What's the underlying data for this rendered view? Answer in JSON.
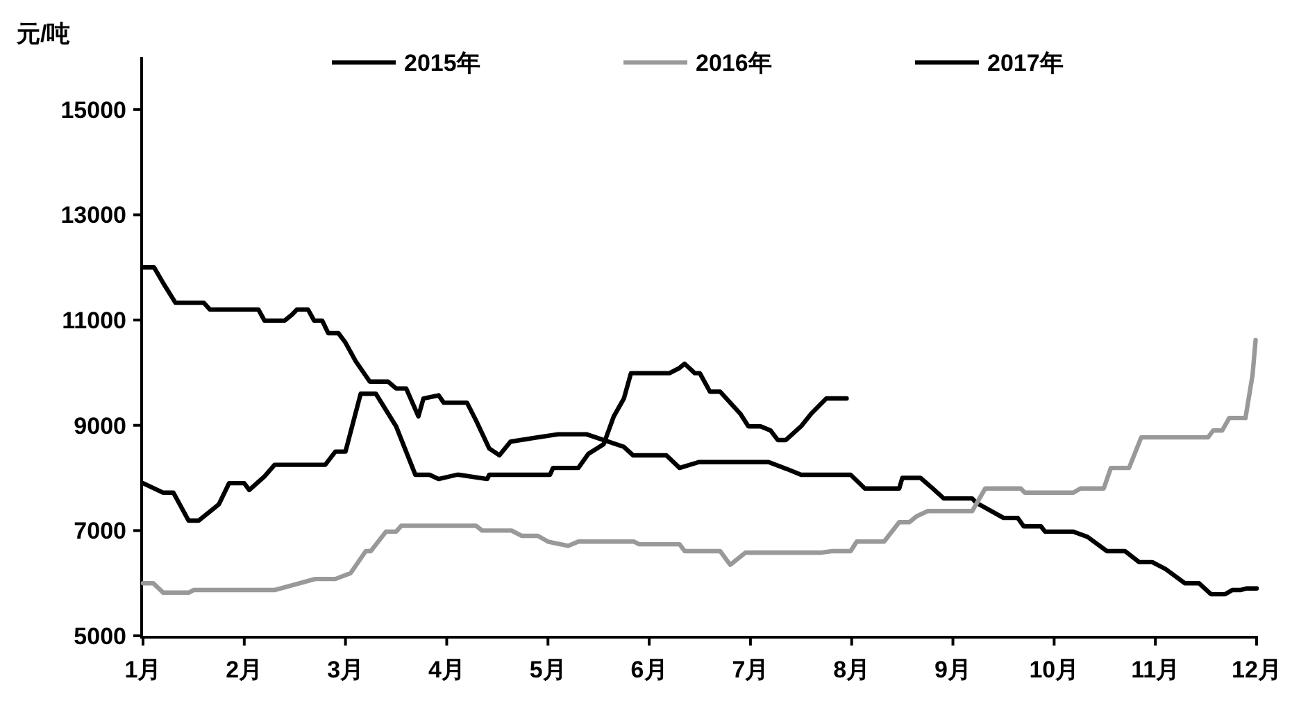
{
  "chart_data": {
    "type": "line",
    "ylabel": "元/吨",
    "xlim": [
      1,
      12
    ],
    "ylim": [
      5000,
      16000
    ],
    "xticks": [
      {
        "value": 1,
        "label": "1月"
      },
      {
        "value": 2,
        "label": "2月"
      },
      {
        "value": 3,
        "label": "3月"
      },
      {
        "value": 4,
        "label": "4月"
      },
      {
        "value": 5,
        "label": "5月"
      },
      {
        "value": 6,
        "label": "6月"
      },
      {
        "value": 7,
        "label": "7月"
      },
      {
        "value": 8,
        "label": "8月"
      },
      {
        "value": 9,
        "label": "9月"
      },
      {
        "value": 10,
        "label": "10月"
      },
      {
        "value": 11,
        "label": "11月"
      },
      {
        "value": 12,
        "label": "12月"
      }
    ],
    "yticks": [
      5000,
      7000,
      9000,
      11000,
      13000,
      15000
    ],
    "grid": false,
    "legend": "top",
    "marker": "none",
    "line_style": "solid",
    "series": [
      {
        "name": "2015年",
        "color": "#000000",
        "x": [
          1.0,
          1.11,
          1.2,
          1.32,
          1.6,
          1.66,
          2.14,
          2.2,
          2.4,
          2.47,
          2.52,
          2.63,
          2.69,
          2.77,
          2.83,
          2.93,
          3.0,
          3.1,
          3.24,
          3.42,
          3.5,
          3.6,
          3.72,
          3.77,
          3.92,
          3.97,
          4.2,
          4.29,
          4.42,
          4.52,
          4.63,
          5.1,
          5.38,
          5.75,
          5.84,
          6.17,
          6.3,
          6.49,
          7.18,
          7.36,
          7.5,
          7.86,
          7.99,
          8.13,
          8.47,
          8.5,
          8.68,
          8.8,
          8.91,
          9.19,
          9.23,
          9.5,
          9.64,
          9.7,
          9.87,
          9.91,
          10.19,
          10.33,
          10.52,
          10.7,
          10.84,
          10.97,
          11.1,
          11.29,
          11.43,
          11.55,
          11.69,
          11.76,
          11.84,
          11.9,
          12.0
        ],
        "values": [
          12000,
          12000,
          11700,
          11330,
          11330,
          11200,
          11200,
          10990,
          10990,
          11100,
          11200,
          11200,
          10990,
          10990,
          10750,
          10750,
          10570,
          10220,
          9830,
          9830,
          9700,
          9700,
          9170,
          9510,
          9570,
          9430,
          9430,
          9090,
          8560,
          8430,
          8690,
          8830,
          8830,
          8590,
          8430,
          8430,
          8190,
          8300,
          8300,
          8170,
          8060,
          8060,
          8060,
          7800,
          7800,
          8000,
          8000,
          7800,
          7610,
          7610,
          7530,
          7240,
          7240,
          7080,
          7080,
          6980,
          6980,
          6880,
          6610,
          6610,
          6400,
          6400,
          6270,
          6000,
          6000,
          5790,
          5790,
          5870,
          5870,
          5900,
          5900
        ]
      },
      {
        "name": "2016年",
        "color": "#999999",
        "x": [
          1.0,
          1.1,
          1.2,
          1.45,
          1.5,
          2.3,
          2.7,
          2.9,
          3.05,
          3.2,
          3.25,
          3.4,
          3.5,
          3.55,
          4.29,
          4.35,
          4.64,
          4.74,
          4.9,
          5.0,
          5.2,
          5.3,
          5.85,
          5.9,
          6.3,
          6.35,
          6.7,
          6.8,
          6.95,
          7.7,
          7.81,
          7.99,
          8.05,
          8.32,
          8.47,
          8.57,
          8.64,
          8.75,
          9.19,
          9.32,
          9.67,
          9.71,
          10.19,
          10.26,
          10.49,
          10.56,
          10.74,
          10.86,
          11.52,
          11.57,
          11.66,
          11.73,
          11.89,
          11.96,
          11.99
        ],
        "values": [
          6000,
          6000,
          5820,
          5820,
          5870,
          5870,
          6080,
          6080,
          6190,
          6610,
          6610,
          6980,
          6980,
          7090,
          7090,
          7000,
          7000,
          6900,
          6900,
          6790,
          6710,
          6790,
          6790,
          6740,
          6740,
          6610,
          6610,
          6350,
          6580,
          6580,
          6610,
          6610,
          6790,
          6790,
          7160,
          7160,
          7270,
          7370,
          7370,
          7800,
          7800,
          7720,
          7720,
          7800,
          7800,
          8190,
          8190,
          8770,
          8770,
          8900,
          8900,
          9140,
          9140,
          9960,
          10620
        ]
      },
      {
        "name": "2017年",
        "color": "#000000",
        "x": [
          1.0,
          1.2,
          1.3,
          1.45,
          1.55,
          1.75,
          1.85,
          2.0,
          2.05,
          2.2,
          2.3,
          2.8,
          2.9,
          3.0,
          3.15,
          3.3,
          3.5,
          3.69,
          3.83,
          3.92,
          4.1,
          4.12,
          4.4,
          4.42,
          5.02,
          5.05,
          5.3,
          5.4,
          5.55,
          5.65,
          5.75,
          5.82,
          6.2,
          6.3,
          6.35,
          6.45,
          6.5,
          6.6,
          6.7,
          6.8,
          6.9,
          6.98,
          7.1,
          7.2,
          7.27,
          7.35,
          7.5,
          7.6,
          7.75,
          7.95
        ],
        "values": [
          7900,
          7720,
          7720,
          7190,
          7190,
          7500,
          7900,
          7900,
          7770,
          8030,
          8250,
          8250,
          8500,
          8500,
          9600,
          9600,
          8980,
          8060,
          8060,
          7980,
          8060,
          8060,
          7980,
          8060,
          8060,
          8190,
          8190,
          8460,
          8640,
          9170,
          9510,
          9990,
          9990,
          10090,
          10170,
          9990,
          9990,
          9640,
          9640,
          9430,
          9220,
          8980,
          8980,
          8900,
          8720,
          8720,
          8980,
          9220,
          9510,
          9510
        ]
      }
    ]
  }
}
